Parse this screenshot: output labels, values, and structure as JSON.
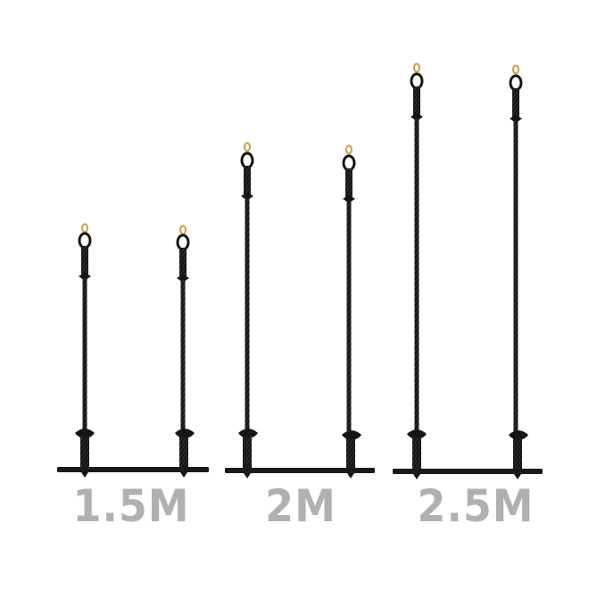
{
  "swings": [
    {
      "label": "1.5M",
      "rope_length_m": 1.5
    },
    {
      "label": "2M",
      "rope_length_m": 2
    },
    {
      "label": "2.5M",
      "rope_length_m": 2.5
    }
  ],
  "colors": {
    "background": "#ffffff",
    "rope": "#151515",
    "bar": "#1a1a1a",
    "hook": "#c9a04a",
    "label": "#b0b0b0"
  },
  "icons": [
    "rope-swing",
    "brass-hook",
    "wooden-bar"
  ]
}
